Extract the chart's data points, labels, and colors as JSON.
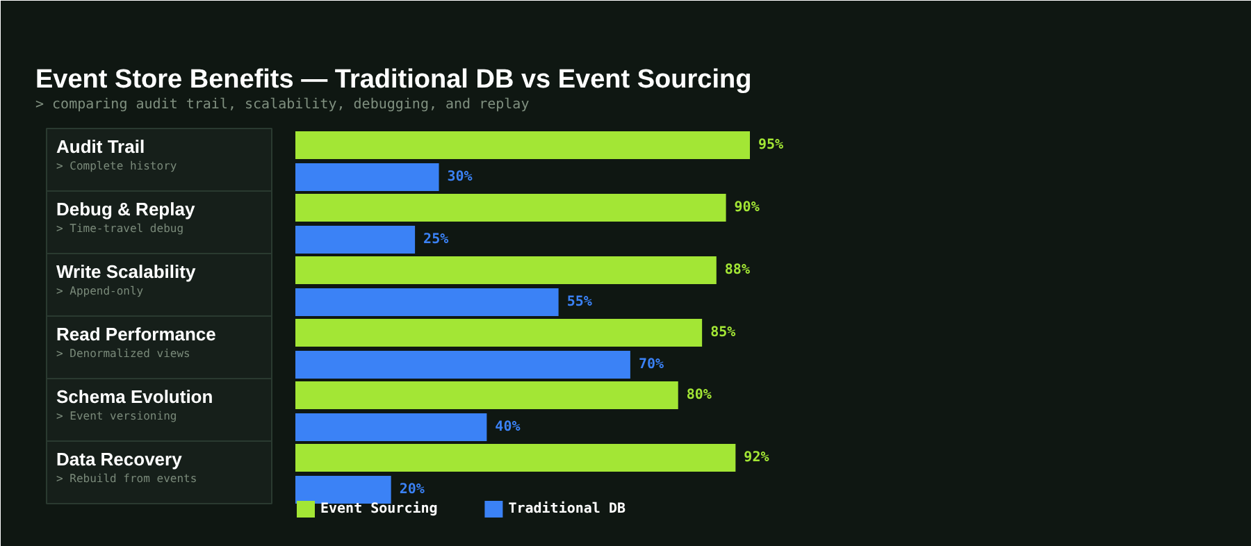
{
  "chart_data": {
    "type": "bar",
    "orientation": "horizontal",
    "title": "Event Store Benefits — Traditional DB vs Event Sourcing",
    "subtitle": "> comparing audit trail, scalability, debugging, and replay",
    "categories": [
      "Audit Trail\n> Complete history",
      "Debug & Replay\n> Time-travel debug",
      "Write Scalability\n> Append-only",
      "Read Performance\n> Denormalized views",
      "Schema Evolution\n> Event versioning",
      "Data Recovery\n> Rebuild from events"
    ],
    "series": [
      {
        "name": "Event Sourcing",
        "color": "#a3e635",
        "values": [
          95,
          90,
          88,
          85,
          80,
          92
        ],
        "value_labels": [
          "95%",
          "90%",
          "88%",
          "85%",
          "80%",
          "92%"
        ]
      },
      {
        "name": "Traditional DB",
        "color": "#3b82f6",
        "values": [
          30,
          25,
          55,
          70,
          40,
          20
        ],
        "value_labels": [
          "30%",
          "25%",
          "55%",
          "70%",
          "40%",
          "20%"
        ]
      }
    ],
    "data_labels": true,
    "legend": "bottom",
    "grid": false
  }
}
